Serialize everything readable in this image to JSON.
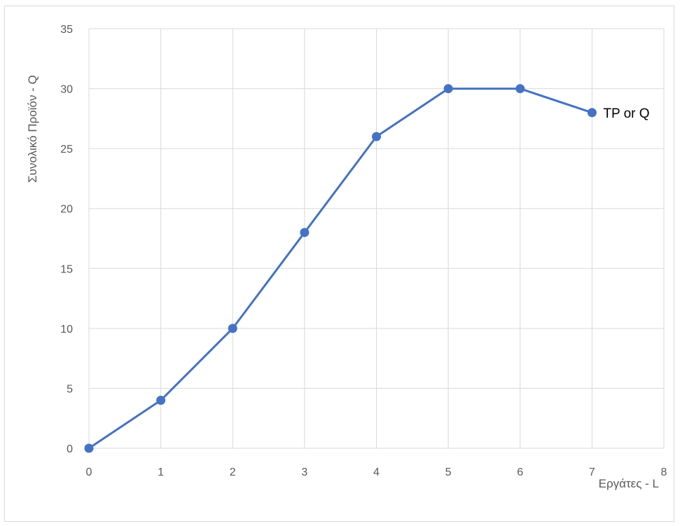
{
  "chart_data": {
    "type": "line",
    "xlabel": "Εργάτες  - L",
    "ylabel": "Συνολικό Προϊόν - Q",
    "xlim": [
      0,
      8
    ],
    "ylim": [
      0,
      35
    ],
    "x_ticks": [
      "0",
      "1",
      "2",
      "3",
      "4",
      "5",
      "6",
      "7",
      "8"
    ],
    "y_ticks": [
      "0",
      "5",
      "10",
      "15",
      "20",
      "25",
      "30",
      "35"
    ],
    "grid": true,
    "series": [
      {
        "name": "TP or Q",
        "x": [
          0,
          1,
          2,
          3,
          4,
          5,
          6,
          7
        ],
        "y": [
          0,
          4,
          10,
          18,
          26,
          30,
          30,
          28
        ],
        "color": "#4472C4"
      }
    ],
    "gridline_color": "#d9d9d9",
    "series_label_placement": "at-last-point"
  }
}
